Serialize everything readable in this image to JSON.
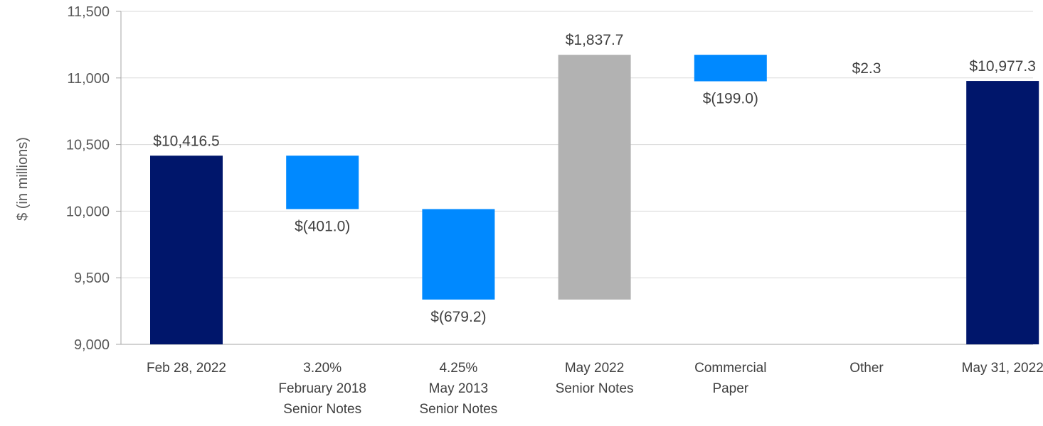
{
  "chart_data": {
    "type": "waterfall",
    "title": "",
    "xlabel": "",
    "ylabel": "$ (in millions)",
    "ylim": [
      9000,
      11500
    ],
    "yticks": [
      9000,
      9500,
      10000,
      10500,
      11000,
      11500
    ],
    "ytick_labels": [
      "9,000",
      "9,500",
      "10,000",
      "10,500",
      "11,000",
      "11,500"
    ],
    "grid": true,
    "bars": [
      {
        "category": [
          "Feb 28, 2022"
        ],
        "kind": "total",
        "start": 9000,
        "end": 10416.5,
        "label": "$10,416.5",
        "label_pos": "above",
        "color": "#00166B"
      },
      {
        "category": [
          "3.20%",
          "February 2018",
          "Senior Notes"
        ],
        "kind": "decrease",
        "start": 10416.5,
        "end": 10015.5,
        "label": "$(401.0)",
        "label_pos": "below",
        "color": "#0089FF"
      },
      {
        "category": [
          "4.25%",
          "May 2013",
          "Senior Notes"
        ],
        "kind": "decrease",
        "start": 10015.5,
        "end": 9336.3,
        "label": "$(679.2)",
        "label_pos": "below",
        "color": "#0089FF"
      },
      {
        "category": [
          "May 2022",
          "Senior Notes"
        ],
        "kind": "increase",
        "start": 9336.3,
        "end": 11174.0,
        "label": "$1,837.7",
        "label_pos": "above",
        "color": "#B2B2B2"
      },
      {
        "category": [
          "Commercial",
          "Paper"
        ],
        "kind": "decrease",
        "start": 11174.0,
        "end": 10975.0,
        "label": "$(199.0)",
        "label_pos": "below",
        "color": "#0089FF"
      },
      {
        "category": [
          "Other"
        ],
        "kind": "increase",
        "start": 10975.0,
        "end": 10977.3,
        "label": "$2.3",
        "label_pos": "above-offset",
        "color": "#B2B2B2"
      },
      {
        "category": [
          "May 31, 2022"
        ],
        "kind": "total",
        "start": 9000,
        "end": 10977.3,
        "label": "$10,977.3",
        "label_pos": "above",
        "color": "#00166B"
      }
    ]
  }
}
